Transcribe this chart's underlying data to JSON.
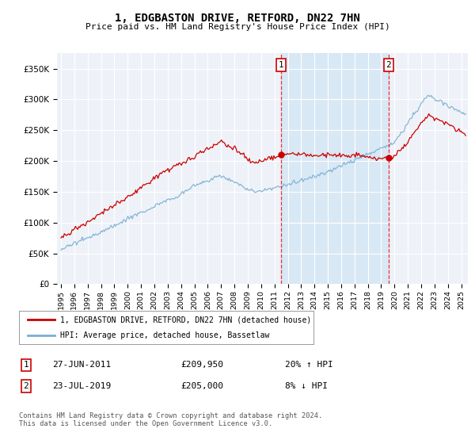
{
  "title": "1, EDGBASTON DRIVE, RETFORD, DN22 7HN",
  "subtitle": "Price paid vs. HM Land Registry's House Price Index (HPI)",
  "ylabel_ticks": [
    "£0",
    "£50K",
    "£100K",
    "£150K",
    "£200K",
    "£250K",
    "£300K",
    "£350K"
  ],
  "ytick_values": [
    0,
    50000,
    100000,
    150000,
    200000,
    250000,
    300000,
    350000
  ],
  "ylim": [
    0,
    375000
  ],
  "xlim_start": 1994.7,
  "xlim_end": 2025.5,
  "sale1_date": 2011.49,
  "sale1_price": 209950,
  "sale2_date": 2019.55,
  "sale2_price": 205000,
  "sale1_text": "27-JUN-2011",
  "sale1_price_text": "£209,950",
  "sale1_hpi_text": "20% ↑ HPI",
  "sale2_text": "23-JUL-2019",
  "sale2_price_text": "£205,000",
  "sale2_hpi_text": "8% ↓ HPI",
  "house_color": "#cc0000",
  "hpi_color": "#7aafd4",
  "hpi_fill_color": "#d0e4f5",
  "legend_house": "1, EDGBASTON DRIVE, RETFORD, DN22 7HN (detached house)",
  "legend_hpi": "HPI: Average price, detached house, Bassetlaw",
  "footer": "Contains HM Land Registry data © Crown copyright and database right 2024.\nThis data is licensed under the Open Government Licence v3.0.",
  "xtick_years": [
    1995,
    1996,
    1997,
    1998,
    1999,
    2000,
    2001,
    2002,
    2003,
    2004,
    2005,
    2006,
    2007,
    2008,
    2009,
    2010,
    2011,
    2012,
    2013,
    2014,
    2015,
    2016,
    2017,
    2018,
    2019,
    2020,
    2021,
    2022,
    2023,
    2024,
    2025
  ],
  "plot_bg": "#eef2f8",
  "grid_color": "#ffffff"
}
